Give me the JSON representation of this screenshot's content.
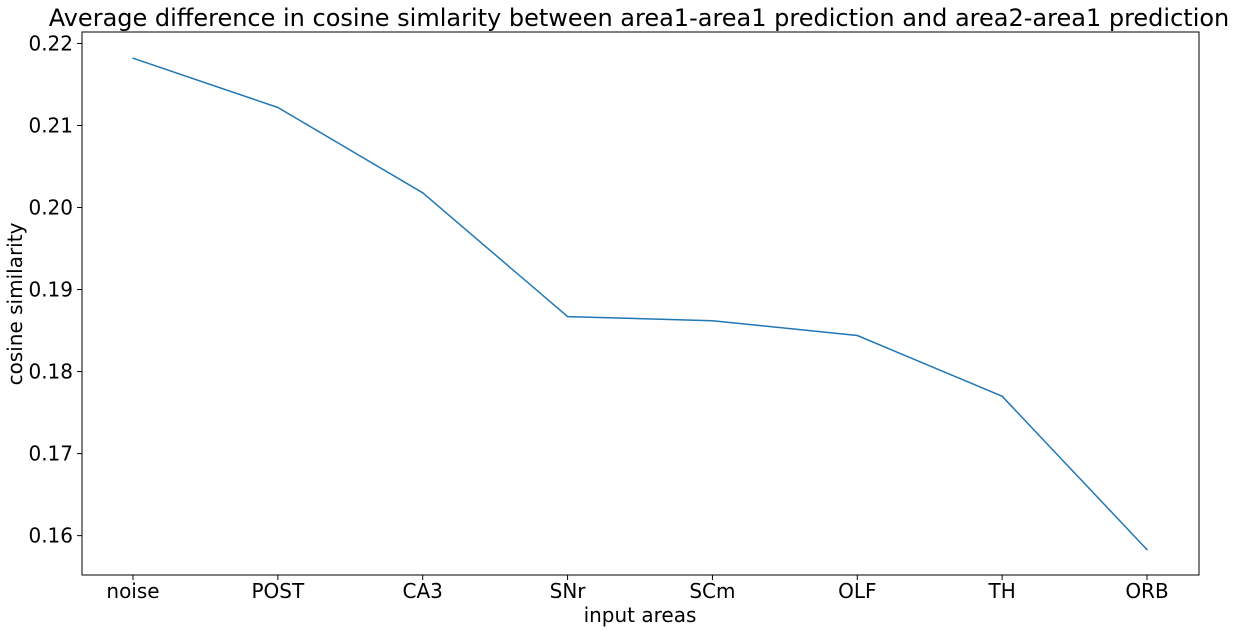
{
  "chart_data": {
    "type": "line",
    "title": "Average difference in cosine simlarity between area1-area1 prediction and area2-area1 prediction",
    "xlabel": "input areas",
    "ylabel": "cosine similarity",
    "categories": [
      "noise",
      "POST",
      "CA3",
      "SNr",
      "SCm",
      "OLF",
      "TH",
      "ORB"
    ],
    "series": [
      {
        "values": [
          0.2182,
          0.2122,
          0.2018,
          0.1867,
          0.1862,
          0.1844,
          0.177,
          0.1583
        ]
      }
    ],
    "ylim": [
      0.1552,
      0.2214
    ],
    "yticks": [
      0.16,
      0.17,
      0.18,
      0.19,
      0.2,
      0.21,
      0.22
    ],
    "ytick_labels": [
      "0.16",
      "0.17",
      "0.18",
      "0.19",
      "0.20",
      "0.21",
      "0.22"
    ],
    "grid": false,
    "line_color": "#1f77b4"
  }
}
